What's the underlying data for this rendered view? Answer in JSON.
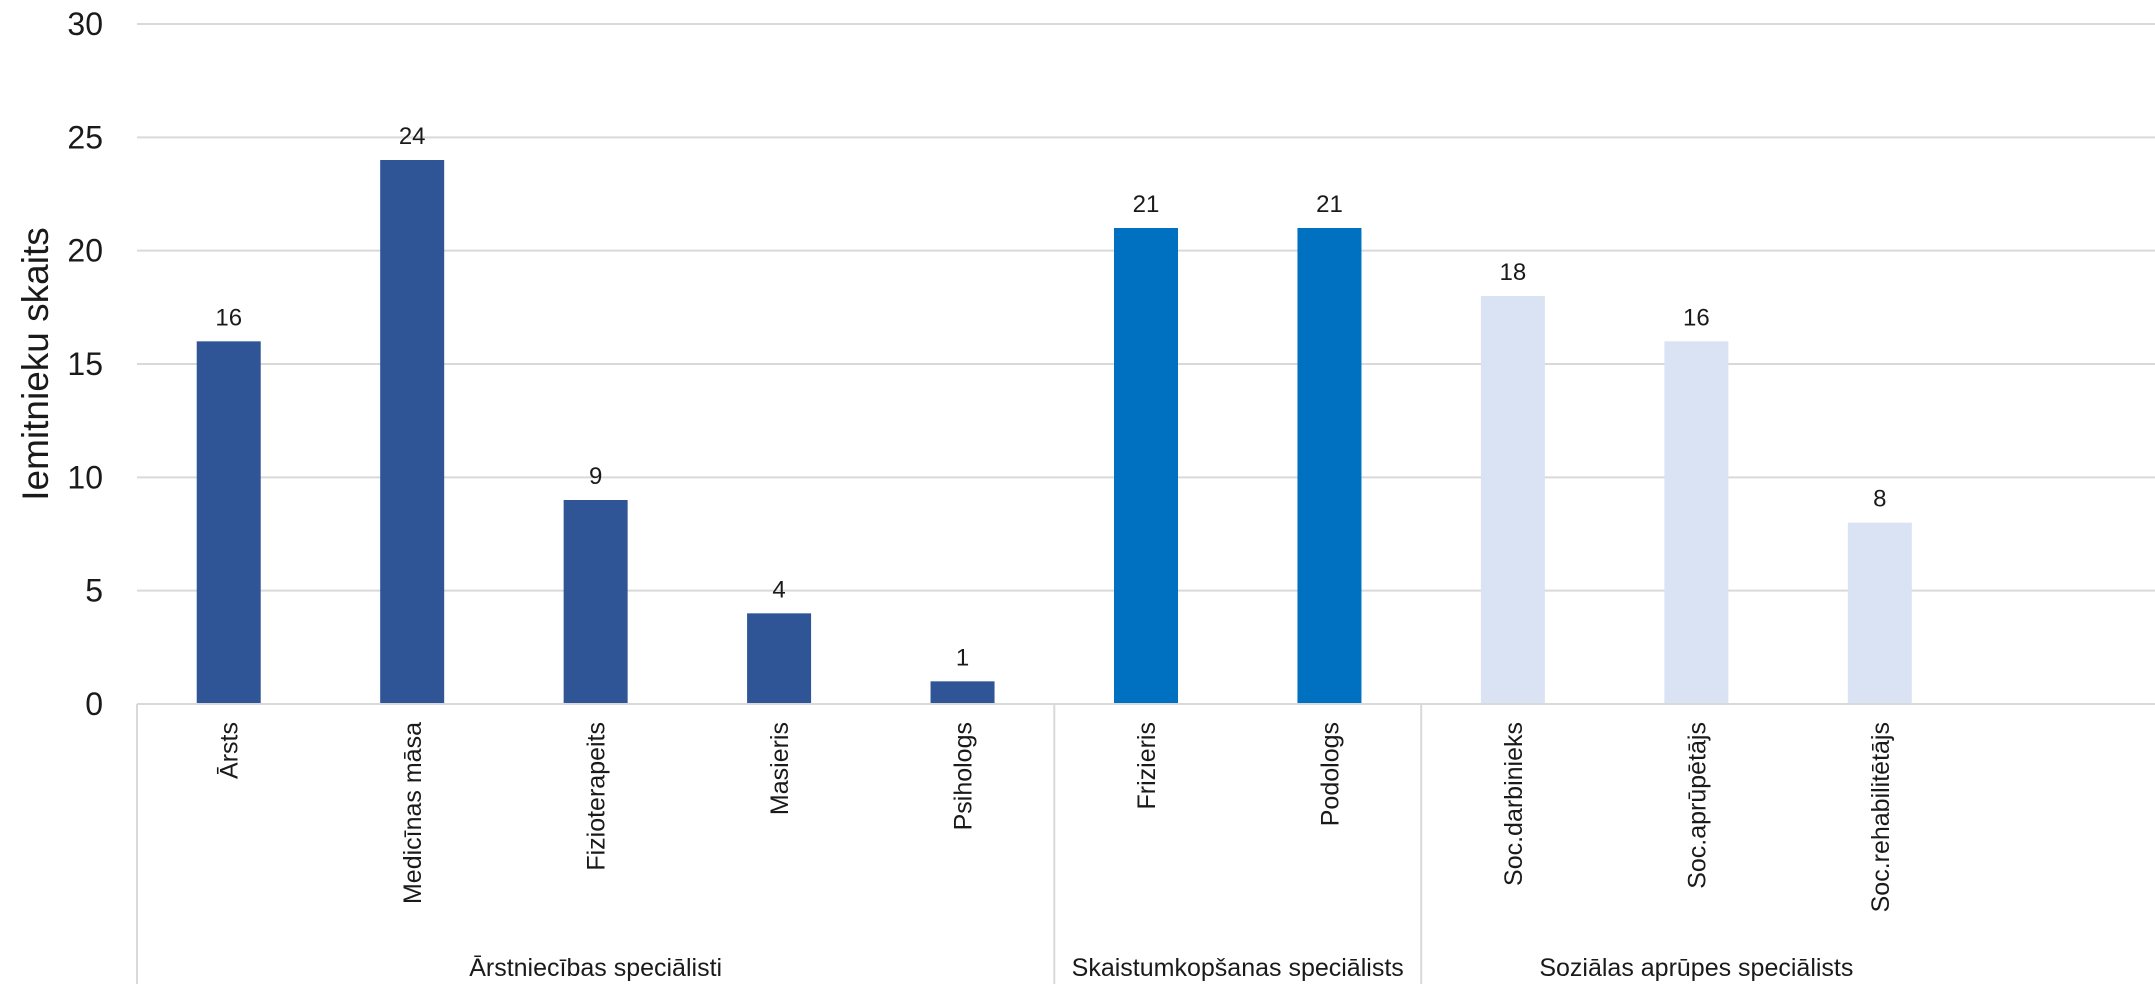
{
  "chart_data": {
    "type": "bar",
    "ylabel": "Iemitnieku skaits",
    "ylim": [
      0,
      30
    ],
    "yticks": [
      0,
      5,
      10,
      15,
      20,
      25,
      30
    ],
    "grid": true,
    "legend": "none",
    "data_labels": true,
    "groups": [
      {
        "name": "Ārstniecības speciālisti",
        "color": "#2F5597",
        "categories": [
          "Ārsts",
          "Medicīnas māsa",
          "Fizioterapeits",
          "Masieris",
          "Psihologs"
        ],
        "values": [
          16,
          24,
          9,
          4,
          1
        ]
      },
      {
        "name": "Skaistumkopšanas speciālists",
        "color": "#0070C0",
        "categories": [
          "Frizieris",
          "Podologs"
        ],
        "values": [
          21,
          21
        ]
      },
      {
        "name": "Soziālas aprūpes speciālists",
        "color": "#DAE3F3",
        "categories": [
          "Soc.darbinieks",
          "Soc.aprūpētājs",
          "Soc.rehabilitētājs"
        ],
        "values": [
          18,
          16,
          8
        ]
      }
    ]
  }
}
